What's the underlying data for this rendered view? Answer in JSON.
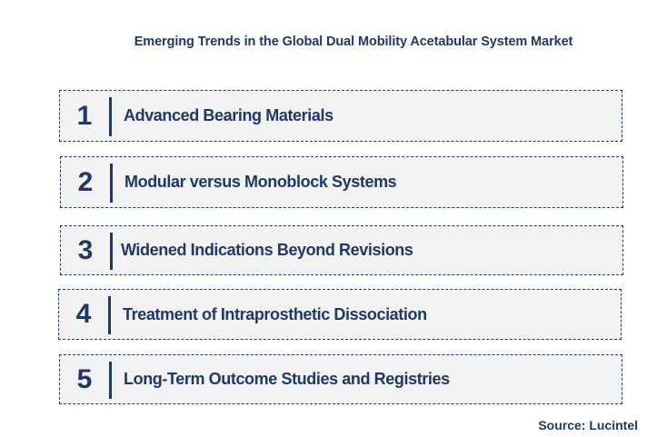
{
  "title": "Emerging Trends in the Global Dual Mobility Acetabular System Market",
  "trends": [
    {
      "number": "1",
      "label": "Advanced Bearing Materials"
    },
    {
      "number": "2",
      "label": "Modular versus Monoblock Systems"
    },
    {
      "number": "3",
      "label": "Widened Indications Beyond Revisions"
    },
    {
      "number": "4",
      "label": "Treatment of Intraprosthetic Dissociation"
    },
    {
      "number": "5",
      "label": "Long-Term Outcome Studies and Registries"
    }
  ],
  "source": "Source: Lucintel",
  "colors": {
    "text": "#1f3864",
    "box_fill": "#f2f2f2",
    "border": "#1f3864"
  }
}
